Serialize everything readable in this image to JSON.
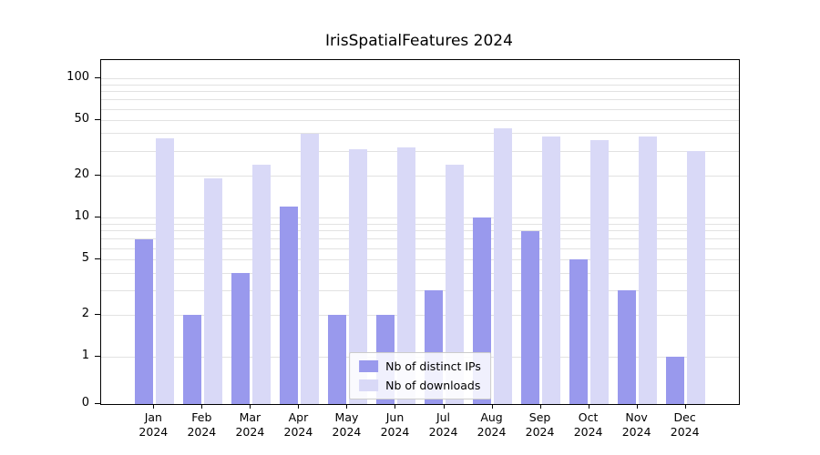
{
  "chart_data": {
    "type": "bar",
    "title": "IrisSpatialFeatures 2024",
    "scale": "symlog",
    "categories": [
      "Jan",
      "Feb",
      "Mar",
      "Apr",
      "May",
      "Jun",
      "Jul",
      "Aug",
      "Sep",
      "Oct",
      "Nov",
      "Dec"
    ],
    "year": "2024",
    "series": [
      {
        "name": "Nb of distinct IPs",
        "color": "#9999ed",
        "values": [
          7,
          2,
          4,
          12,
          2,
          2,
          3,
          10,
          8,
          5,
          3,
          1
        ]
      },
      {
        "name": "Nb of downloads",
        "color": "#d9d9f7",
        "values": [
          37,
          19,
          24,
          40,
          31,
          32,
          24,
          44,
          38,
          36,
          38,
          30
        ]
      }
    ],
    "y_ticks": [
      0,
      1,
      2,
      5,
      10,
      20,
      50,
      100
    ],
    "minor_gridlines": [
      3,
      4,
      6,
      7,
      8,
      9,
      30,
      40,
      60,
      70,
      80,
      90
    ],
    "ylim": [
      0,
      110
    ],
    "grid": true,
    "legend_position": "lower center",
    "xlabel": "",
    "ylabel": ""
  }
}
